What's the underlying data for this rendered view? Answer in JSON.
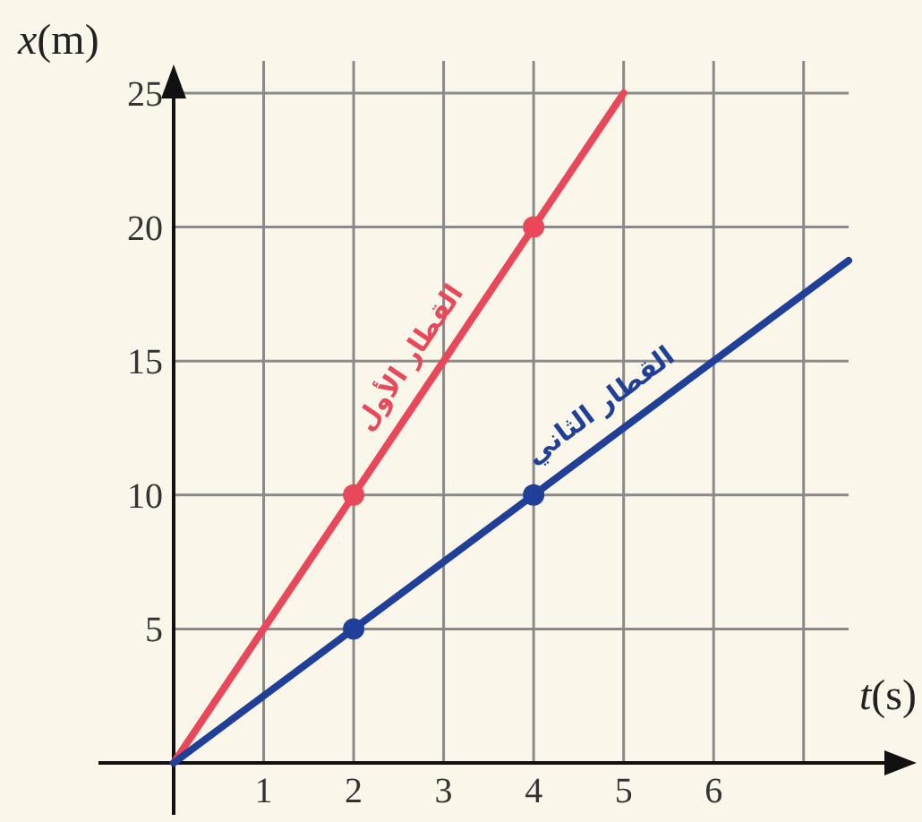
{
  "chart_data": {
    "type": "line",
    "xlabel": "t(s)",
    "ylabel": "x(m)",
    "xlim": [
      0,
      7.5
    ],
    "ylim": [
      0,
      26.2
    ],
    "xticks": [
      1,
      2,
      3,
      4,
      5,
      6,
      {
        "value": 7,
        "label": null
      }
    ],
    "yticks": [
      5,
      10,
      15,
      20,
      25
    ],
    "grid": true,
    "line_style": "solid",
    "series": [
      {
        "name": "القطار الأول",
        "color": "#e8485a",
        "x": [
          0,
          5
        ],
        "values": [
          0,
          25
        ]
      },
      {
        "name": "القطار الثاني",
        "color": "#1f3f99",
        "x": [
          0,
          7.5
        ],
        "values": [
          0,
          18.75
        ]
      },
      {
        "type": "scatter",
        "color": "#e8485a",
        "x": [
          2,
          4
        ],
        "values": [
          10,
          20
        ]
      },
      {
        "type": "scatter",
        "color": "#1f3f99",
        "x": [
          2,
          4
        ],
        "values": [
          5,
          10
        ]
      }
    ]
  }
}
